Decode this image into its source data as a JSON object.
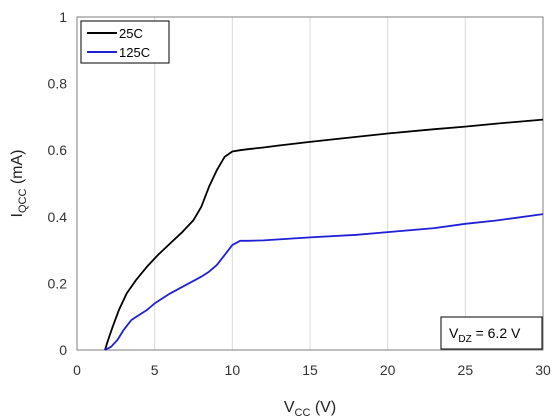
{
  "chart_data": {
    "type": "line",
    "xlabel": {
      "main": "V",
      "sub": "CC",
      "unit": " (V)"
    },
    "ylabel": {
      "main": "I",
      "sub": "QCC",
      "unit": " (mA)"
    },
    "xlim": [
      0,
      30
    ],
    "ylim": [
      0,
      1
    ],
    "xticks": [
      0,
      5,
      10,
      15,
      20,
      25,
      30
    ],
    "yticks": [
      0,
      0.2,
      0.4,
      0.6,
      0.8,
      1
    ],
    "ytick_labels": [
      "0",
      "0.2",
      "0.4",
      "0.6",
      "0.8",
      "1"
    ],
    "grid": "vertical",
    "legend_position": "top-left",
    "annotation": {
      "main": "V",
      "sub": "DZ",
      "rest": " = 6.2 V",
      "position": "bottom-right"
    },
    "series": [
      {
        "name": "25C",
        "color": "#000000",
        "x": [
          1.8,
          2.0,
          2.3,
          2.7,
          3.2,
          3.8,
          4.5,
          5.2,
          6.0,
          6.8,
          7.5,
          8.0,
          8.5,
          9.0,
          9.5,
          10.0,
          10.5,
          11,
          12,
          13,
          15,
          17,
          20,
          23,
          25,
          27,
          30
        ],
        "y": [
          0.0,
          0.03,
          0.07,
          0.12,
          0.17,
          0.21,
          0.25,
          0.285,
          0.32,
          0.355,
          0.39,
          0.43,
          0.49,
          0.54,
          0.58,
          0.596,
          0.6,
          0.603,
          0.608,
          0.614,
          0.625,
          0.635,
          0.65,
          0.663,
          0.671,
          0.68,
          0.692
        ]
      },
      {
        "name": "125C",
        "color": "#1f1fd6",
        "x": [
          1.8,
          2.2,
          2.6,
          3.0,
          3.5,
          4.0,
          4.5,
          5.0,
          5.5,
          6.0,
          7.0,
          8.0,
          8.5,
          9.0,
          9.5,
          10.0,
          10.5,
          11,
          12,
          13,
          15,
          18,
          20,
          23,
          25,
          27,
          30
        ],
        "y": [
          0.0,
          0.01,
          0.03,
          0.06,
          0.09,
          0.105,
          0.12,
          0.14,
          0.155,
          0.17,
          0.195,
          0.22,
          0.235,
          0.255,
          0.285,
          0.315,
          0.328,
          0.328,
          0.329,
          0.332,
          0.338,
          0.346,
          0.354,
          0.366,
          0.379,
          0.389,
          0.408
        ]
      }
    ]
  }
}
